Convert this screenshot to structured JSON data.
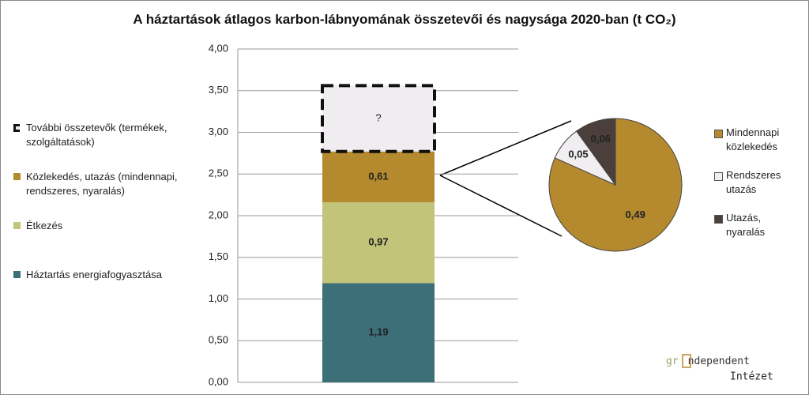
{
  "chart_data": [
    {
      "type": "stacked_bar",
      "title": "A háztartások átlagos karbon-lábnyomának összetevői  és nagysága 2020-ban (t CO₂)",
      "categories": [
        null
      ],
      "series": [
        {
          "name": "Háztartás energiafogyasztása",
          "color": "#3d6f78",
          "values": [
            1.19
          ],
          "value_labels": [
            "1,19"
          ]
        },
        {
          "name": "Étkezés",
          "color": "#c2c47a",
          "values": [
            0.97
          ],
          "value_labels": [
            "0,97"
          ]
        },
        {
          "name": "Közlekedés, utazás (mindennapi, rendszeres, nyaralás)",
          "color": "#b58a2e",
          "values": [
            0.61
          ],
          "value_labels": [
            "0,61"
          ]
        },
        {
          "name": "További összetevők (termékek, szolgáltatások)",
          "color": "#efedf0",
          "values": [
            0.79
          ],
          "value_labels": [
            "?"
          ],
          "dashed": true
        }
      ],
      "ylim": [
        0,
        4
      ],
      "yticks": [
        {
          "value": 0,
          "label": "0,00"
        },
        {
          "value": 0.5,
          "label": "0,50"
        },
        {
          "value": 1,
          "label": "1,00"
        },
        {
          "value": 1.5,
          "label": "1,50"
        },
        {
          "value": 2,
          "label": "2,00"
        },
        {
          "value": 2.5,
          "label": "2,50"
        },
        {
          "value": 3,
          "label": "3,00"
        },
        {
          "value": 3.5,
          "label": "3,50"
        },
        {
          "value": 4,
          "label": "4,00"
        }
      ],
      "grid": true,
      "legend": "left"
    },
    {
      "type": "pie",
      "categories": [
        "Mindennapi közlekedés",
        "Rendszeres utazás",
        "Utazás, nyaralás"
      ],
      "colors": [
        "#b58a2e",
        "#f0eef0",
        "#4a3f3b"
      ],
      "values": [
        0.49,
        0.05,
        0.06
      ],
      "value_labels": [
        "0,49",
        "0,05",
        "0,06"
      ],
      "legend": "right"
    }
  ],
  "logo": [
    "gr",
    "ndependent",
    "Intézet"
  ]
}
